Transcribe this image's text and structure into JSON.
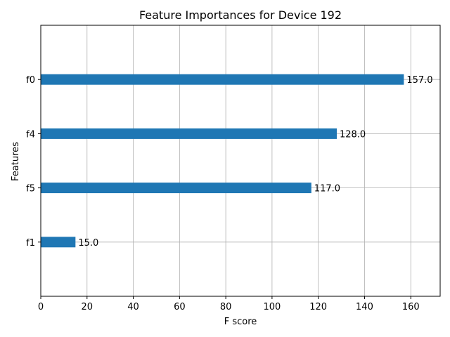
{
  "chart_data": {
    "type": "bar",
    "orientation": "horizontal",
    "title": "Feature Importances for Device 192",
    "xlabel": "F score",
    "ylabel": "Features",
    "categories": [
      "f1",
      "f5",
      "f4",
      "f0"
    ],
    "values": [
      15,
      117,
      128,
      157
    ],
    "value_labels": [
      "15.0",
      "117.0",
      "128.0",
      "157.0"
    ],
    "xlim": [
      0,
      172.7
    ],
    "xticks": [
      0,
      20,
      40,
      60,
      80,
      100,
      120,
      140,
      160
    ],
    "grid": true,
    "bar_color": "#1f77b4"
  }
}
